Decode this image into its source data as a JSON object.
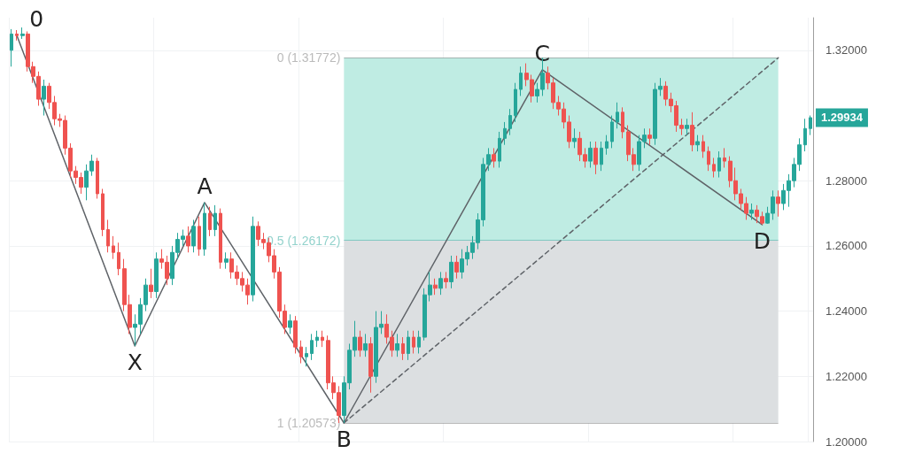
{
  "chart_data": {
    "type": "candlestick",
    "tick_labels": "y",
    "grid": true,
    "categories": [
      null,
      null,
      null,
      null,
      null,
      null,
      null,
      null,
      null,
      null,
      null,
      null,
      null,
      null,
      null,
      null,
      null,
      null,
      null,
      null,
      null,
      null,
      null,
      null,
      null,
      null,
      null,
      null,
      null,
      null,
      null,
      null,
      null,
      null,
      null,
      null,
      null,
      null,
      null,
      null,
      null,
      null,
      null,
      null,
      null,
      null,
      null,
      null,
      null,
      null,
      null,
      null,
      null,
      null,
      null,
      null,
      null,
      null,
      null,
      null,
      null,
      null,
      null,
      null,
      null,
      null,
      null,
      null,
      null,
      null,
      null,
      null,
      null,
      null,
      null,
      null,
      null,
      null,
      null,
      null,
      null,
      null,
      null,
      null,
      null,
      null,
      null,
      null,
      null,
      null,
      null,
      null,
      null,
      null,
      null,
      null,
      null,
      null,
      null,
      null,
      null,
      null,
      null,
      null,
      null,
      null,
      null,
      null,
      null,
      null,
      null,
      null,
      null,
      null,
      null,
      null,
      null,
      null,
      null,
      null,
      null,
      null,
      null,
      null,
      null,
      null,
      null,
      null,
      null,
      null,
      null,
      null,
      null,
      null,
      null,
      null,
      null,
      null,
      null,
      null,
      null,
      null,
      null,
      null,
      null,
      null,
      null,
      null,
      null,
      null
    ],
    "ylim": [
      1.2,
      1.33
    ],
    "yticks": [
      {
        "value": 1.2,
        "label": "1.20000"
      },
      {
        "value": 1.22,
        "label": "1.22000"
      },
      {
        "value": 1.24,
        "label": "1.24000"
      },
      {
        "value": 1.26,
        "label": "1.26000"
      },
      {
        "value": 1.28,
        "label": "1.28000"
      },
      {
        "value": 1.32,
        "label": "1.32000"
      }
    ],
    "series": [
      {
        "ohlc": [
          [
            1.32,
            1.3265,
            1.315,
            1.325
          ],
          [
            1.325,
            1.3262,
            1.323,
            1.3245
          ],
          [
            1.3245,
            1.327,
            1.3235,
            1.325
          ],
          [
            1.325,
            1.3258,
            1.3135,
            1.315
          ],
          [
            1.315,
            1.3165,
            1.31,
            1.312
          ],
          [
            1.312,
            1.3135,
            1.303,
            1.305
          ],
          [
            1.305,
            1.311,
            1.3,
            1.309
          ],
          [
            1.309,
            1.31,
            1.302,
            1.304
          ],
          [
            1.304,
            1.306,
            1.297,
            1.299
          ],
          [
            1.299,
            1.3005,
            1.2965,
            1.2985
          ],
          [
            1.2985,
            1.3,
            1.288,
            1.29
          ],
          [
            1.29,
            1.2915,
            1.281,
            1.283
          ],
          [
            1.283,
            1.2845,
            1.279,
            1.281
          ],
          [
            1.281,
            1.2825,
            1.276,
            1.278
          ],
          [
            1.278,
            1.285,
            1.274,
            1.283
          ],
          [
            1.283,
            1.288,
            1.2815,
            1.286
          ],
          [
            1.286,
            1.287,
            1.2745,
            1.276
          ],
          [
            1.276,
            1.2775,
            1.263,
            1.265
          ],
          [
            1.265,
            1.268,
            1.258,
            1.26
          ],
          [
            1.26,
            1.263,
            1.256,
            1.258
          ],
          [
            1.258,
            1.261,
            1.251,
            1.253
          ],
          [
            1.253,
            1.256,
            1.24,
            1.242
          ],
          [
            1.242,
            1.245,
            1.233,
            1.235
          ],
          [
            1.235,
            1.239,
            1.2293,
            1.236
          ],
          [
            1.236,
            1.244,
            1.233,
            1.242
          ],
          [
            1.242,
            1.25,
            1.24,
            1.248
          ],
          [
            1.248,
            1.253,
            1.244,
            1.246
          ],
          [
            1.246,
            1.258,
            1.244,
            1.256
          ],
          [
            1.256,
            1.259,
            1.253,
            1.255
          ],
          [
            1.255,
            1.257,
            1.248,
            1.25
          ],
          [
            1.25,
            1.26,
            1.248,
            1.258
          ],
          [
            1.258,
            1.264,
            1.256,
            1.262
          ],
          [
            1.262,
            1.265,
            1.26,
            1.263
          ],
          [
            1.263,
            1.266,
            1.258,
            1.26
          ],
          [
            1.26,
            1.268,
            1.258,
            1.266
          ],
          [
            1.266,
            1.269,
            1.257,
            1.259
          ],
          [
            1.259,
            1.2733,
            1.257,
            1.27
          ],
          [
            1.27,
            1.272,
            1.263,
            1.265
          ],
          [
            1.265,
            1.2725,
            1.263,
            1.27
          ],
          [
            1.27,
            1.2715,
            1.253,
            1.255
          ],
          [
            1.255,
            1.258,
            1.253,
            1.256
          ],
          [
            1.256,
            1.258,
            1.25,
            1.252
          ],
          [
            1.252,
            1.254,
            1.248,
            1.25
          ],
          [
            1.25,
            1.252,
            1.246,
            1.248
          ],
          [
            1.248,
            1.25,
            1.242,
            1.245
          ],
          [
            1.245,
            1.269,
            1.243,
            1.266
          ],
          [
            1.266,
            1.2675,
            1.26,
            1.262
          ],
          [
            1.262,
            1.264,
            1.259,
            1.261
          ],
          [
            1.261,
            1.2625,
            1.255,
            1.257
          ],
          [
            1.257,
            1.259,
            1.25,
            1.252
          ],
          [
            1.252,
            1.2535,
            1.238,
            1.24
          ],
          [
            1.24,
            1.242,
            1.233,
            1.235
          ],
          [
            1.235,
            1.239,
            1.233,
            1.237
          ],
          [
            1.237,
            1.2385,
            1.227,
            1.229
          ],
          [
            1.229,
            1.231,
            1.224,
            1.226
          ],
          [
            1.226,
            1.229,
            1.223,
            1.227
          ],
          [
            1.227,
            1.233,
            1.225,
            1.231
          ],
          [
            1.231,
            1.234,
            1.229,
            1.232
          ],
          [
            1.232,
            1.234,
            1.229,
            1.231
          ],
          [
            1.231,
            1.2325,
            1.216,
            1.218
          ],
          [
            1.218,
            1.22,
            1.213,
            1.215
          ],
          [
            1.215,
            1.217,
            1.2057,
            1.208
          ],
          [
            1.208,
            1.22,
            1.2057,
            1.218
          ],
          [
            1.218,
            1.23,
            1.216,
            1.228
          ],
          [
            1.228,
            1.237,
            1.226,
            1.232
          ],
          [
            1.232,
            1.234,
            1.226,
            1.228
          ],
          [
            1.228,
            1.233,
            1.226,
            1.23
          ],
          [
            1.23,
            1.232,
            1.215,
            1.22
          ],
          [
            1.22,
            1.24,
            1.218,
            1.235
          ],
          [
            1.235,
            1.24,
            1.233,
            1.236
          ],
          [
            1.236,
            1.239,
            1.23,
            1.232
          ],
          [
            1.232,
            1.234,
            1.226,
            1.228
          ],
          [
            1.228,
            1.233,
            1.226,
            1.23
          ],
          [
            1.23,
            1.232,
            1.225,
            1.227
          ],
          [
            1.227,
            1.234,
            1.225,
            1.232
          ],
          [
            1.232,
            1.234,
            1.227,
            1.229
          ],
          [
            1.229,
            1.234,
            1.227,
            1.232
          ],
          [
            1.232,
            1.247,
            1.231,
            1.245
          ],
          [
            1.245,
            1.252,
            1.243,
            1.248
          ],
          [
            1.248,
            1.25,
            1.245,
            1.247
          ],
          [
            1.247,
            1.252,
            1.245,
            1.25
          ],
          [
            1.25,
            1.252,
            1.247,
            1.249
          ],
          [
            1.249,
            1.257,
            1.247,
            1.255
          ],
          [
            1.255,
            1.257,
            1.25,
            1.252
          ],
          [
            1.252,
            1.259,
            1.25,
            1.256
          ],
          [
            1.256,
            1.26,
            1.254,
            1.258
          ],
          [
            1.258,
            1.263,
            1.256,
            1.261
          ],
          [
            1.261,
            1.27,
            1.259,
            1.268
          ],
          [
            1.268,
            1.287,
            1.266,
            1.285
          ],
          [
            1.285,
            1.29,
            1.283,
            1.288
          ],
          [
            1.288,
            1.29,
            1.284,
            1.286
          ],
          [
            1.286,
            1.295,
            1.284,
            1.293
          ],
          [
            1.293,
            1.298,
            1.291,
            1.296
          ],
          [
            1.296,
            1.302,
            1.294,
            1.3
          ],
          [
            1.3,
            1.31,
            1.298,
            1.308
          ],
          [
            1.308,
            1.315,
            1.306,
            1.313
          ],
          [
            1.313,
            1.316,
            1.309,
            1.311
          ],
          [
            1.311,
            1.3125,
            1.304,
            1.306
          ],
          [
            1.306,
            1.31,
            1.304,
            1.308
          ],
          [
            1.308,
            1.3177,
            1.306,
            1.313
          ],
          [
            1.313,
            1.315,
            1.308,
            1.31
          ],
          [
            1.31,
            1.3115,
            1.302,
            1.304
          ],
          [
            1.304,
            1.306,
            1.3,
            1.302
          ],
          [
            1.302,
            1.304,
            1.296,
            1.298
          ],
          [
            1.298,
            1.3,
            1.29,
            1.292
          ],
          [
            1.292,
            1.296,
            1.29,
            1.293
          ],
          [
            1.293,
            1.295,
            1.286,
            1.288
          ],
          [
            1.288,
            1.29,
            1.284,
            1.286
          ],
          [
            1.286,
            1.292,
            1.284,
            1.29
          ],
          [
            1.29,
            1.292,
            1.282,
            1.285
          ],
          [
            1.285,
            1.292,
            1.283,
            1.29
          ],
          [
            1.29,
            1.294,
            1.288,
            1.292
          ],
          [
            1.292,
            1.3,
            1.29,
            1.298
          ],
          [
            1.298,
            1.304,
            1.296,
            1.301
          ],
          [
            1.301,
            1.3025,
            1.293,
            1.295
          ],
          [
            1.295,
            1.297,
            1.286,
            1.288
          ],
          [
            1.288,
            1.29,
            1.283,
            1.285
          ],
          [
            1.285,
            1.294,
            1.283,
            1.292
          ],
          [
            1.292,
            1.296,
            1.29,
            1.294
          ],
          [
            1.294,
            1.296,
            1.291,
            1.293
          ],
          [
            1.293,
            1.31,
            1.291,
            1.308
          ],
          [
            1.308,
            1.3115,
            1.306,
            1.309
          ],
          [
            1.309,
            1.3105,
            1.303,
            1.305
          ],
          [
            1.305,
            1.307,
            1.301,
            1.303
          ],
          [
            1.303,
            1.3045,
            1.295,
            1.297
          ],
          [
            1.297,
            1.299,
            1.294,
            1.296
          ],
          [
            1.296,
            1.299,
            1.294,
            1.297
          ],
          [
            1.297,
            1.301,
            1.289,
            1.291
          ],
          [
            1.291,
            1.294,
            1.289,
            1.292
          ],
          [
            1.292,
            1.294,
            1.287,
            1.289
          ],
          [
            1.289,
            1.2905,
            1.283,
            1.285
          ],
          [
            1.285,
            1.287,
            1.281,
            1.283
          ],
          [
            1.283,
            1.289,
            1.281,
            1.287
          ],
          [
            1.287,
            1.29,
            1.284,
            1.286
          ],
          [
            1.286,
            1.2875,
            1.278,
            1.28
          ],
          [
            1.28,
            1.284,
            1.274,
            1.276
          ],
          [
            1.276,
            1.2775,
            1.271,
            1.273
          ],
          [
            1.273,
            1.275,
            1.268,
            1.27
          ],
          [
            1.27,
            1.273,
            1.268,
            1.271
          ],
          [
            1.271,
            1.2725,
            1.267,
            1.269
          ],
          [
            1.269,
            1.2705,
            1.2665,
            1.267
          ],
          [
            1.267,
            1.272,
            1.2668,
            1.27
          ],
          [
            1.27,
            1.277,
            1.268,
            1.275
          ],
          [
            1.275,
            1.277,
            1.269,
            1.273
          ],
          [
            1.273,
            1.279,
            1.271,
            1.277
          ],
          [
            1.277,
            1.282,
            1.272,
            1.28
          ],
          [
            1.28,
            1.287,
            1.278,
            1.285
          ],
          [
            1.285,
            1.293,
            1.283,
            1.291
          ],
          [
            1.291,
            1.299,
            1.289,
            1.296
          ],
          [
            1.296,
            1.3,
            1.294,
            1.29934
          ]
        ],
        "colors": [
          "#26a69a",
          "#ef5350",
          "#26a69a",
          "#ef5350",
          "#ef5350",
          "#ef5350",
          "#26a69a",
          "#ef5350",
          "#ef5350",
          "#ef5350",
          "#ef5350",
          "#ef5350",
          "#ef5350",
          "#ef5350",
          "#26a69a",
          "#26a69a",
          "#ef5350",
          "#ef5350",
          "#ef5350",
          "#ef5350",
          "#ef5350",
          "#ef5350",
          "#ef5350",
          "#26a69a",
          "#26a69a",
          "#26a69a",
          "#ef5350",
          "#26a69a",
          "#ef5350",
          "#ef5350",
          "#26a69a",
          "#26a69a",
          "#26a69a",
          "#ef5350",
          "#26a69a",
          "#ef5350",
          "#26a69a",
          "#ef5350",
          "#26a69a",
          "#ef5350",
          "#26a69a",
          "#ef5350",
          "#ef5350",
          "#ef5350",
          "#ef5350",
          "#26a69a",
          "#ef5350",
          "#ef5350",
          "#ef5350",
          "#ef5350",
          "#ef5350",
          "#ef5350",
          "#26a69a",
          "#ef5350",
          "#ef5350",
          "#26a69a",
          "#26a69a",
          "#26a69a",
          "#ef5350",
          "#ef5350",
          "#ef5350",
          "#ef5350",
          "#26a69a",
          "#26a69a",
          "#26a69a",
          "#ef5350",
          "#26a69a",
          "#ef5350",
          "#26a69a",
          "#26a69a",
          "#ef5350",
          "#ef5350",
          "#26a69a",
          "#ef5350",
          "#26a69a",
          "#ef5350",
          "#26a69a",
          "#26a69a",
          "#26a69a",
          "#ef5350",
          "#26a69a",
          "#ef5350",
          "#26a69a",
          "#ef5350",
          "#26a69a",
          "#26a69a",
          "#26a69a",
          "#26a69a",
          "#26a69a",
          "#26a69a",
          "#ef5350",
          "#26a69a",
          "#26a69a",
          "#26a69a",
          "#26a69a",
          "#26a69a",
          "#ef5350",
          "#ef5350",
          "#26a69a",
          "#26a69a",
          "#ef5350",
          "#ef5350",
          "#ef5350",
          "#ef5350",
          "#ef5350",
          "#26a69a",
          "#ef5350",
          "#ef5350",
          "#26a69a",
          "#ef5350",
          "#26a69a",
          "#26a69a",
          "#26a69a",
          "#26a69a",
          "#ef5350",
          "#ef5350",
          "#ef5350",
          "#26a69a",
          "#26a69a",
          "#ef5350",
          "#26a69a",
          "#26a69a",
          "#ef5350",
          "#ef5350",
          "#ef5350",
          "#ef5350",
          "#26a69a",
          "#ef5350",
          "#26a69a",
          "#ef5350",
          "#ef5350",
          "#ef5350",
          "#26a69a",
          "#ef5350",
          "#ef5350",
          "#ef5350",
          "#ef5350",
          "#ef5350",
          "#26a69a",
          "#ef5350",
          "#ef5350",
          "#26a69a",
          "#26a69a",
          "#ef5350",
          "#26a69a",
          "#26a69a",
          "#26a69a",
          "#26a69a",
          "#26a69a",
          "#26a69a"
        ],
        "value_labels": [
          null,
          null,
          null,
          null,
          null,
          null,
          null,
          null,
          null,
          null,
          null,
          null,
          null,
          null,
          null,
          null,
          null,
          null,
          null,
          null,
          null,
          null,
          null,
          null,
          null,
          null,
          null,
          null,
          null,
          null,
          null,
          null,
          null,
          null,
          null,
          null,
          null,
          null,
          null,
          null,
          null,
          null,
          null,
          null,
          null,
          null,
          null,
          null,
          null,
          null,
          null,
          null,
          null,
          null,
          null,
          null,
          null,
          null,
          null,
          null,
          null,
          null,
          null,
          null,
          null,
          null,
          null,
          null,
          null,
          null,
          null,
          null,
          null,
          null,
          null,
          null,
          null,
          null,
          null,
          null,
          null,
          null,
          null,
          null,
          null,
          null,
          null,
          null,
          null,
          null,
          null,
          null,
          null,
          null,
          null,
          null,
          null,
          null,
          null,
          null,
          null,
          null,
          null,
          null,
          null,
          null,
          null,
          null,
          null,
          null,
          null,
          null,
          null,
          null,
          null,
          null,
          null,
          null,
          null,
          null,
          null,
          null,
          null,
          null,
          null,
          null,
          null,
          null,
          null,
          null,
          null,
          null,
          null,
          null,
          null,
          null,
          null,
          null,
          null,
          null,
          null,
          null,
          null,
          null,
          null,
          null,
          null,
          null,
          null,
          "1.29934"
        ]
      },
      {
        "type": "line",
        "color": "#5f6368",
        "line_style": "solid",
        "values": [
          null,
          1.3245,
          null,
          null,
          null,
          null,
          null,
          null,
          null,
          null,
          null,
          null,
          null,
          null,
          null,
          null,
          null,
          null,
          null,
          null,
          null,
          null,
          null,
          1.2293,
          null,
          null,
          null,
          null,
          null,
          null,
          null,
          null,
          null,
          null,
          null,
          null,
          1.2733,
          null,
          null,
          null,
          null,
          null,
          null,
          null,
          null,
          null,
          null,
          null,
          null,
          null,
          null,
          null,
          null,
          null,
          null,
          null,
          null,
          null,
          null,
          null,
          null,
          null,
          1.2057,
          null,
          null,
          null,
          null,
          null,
          null,
          null,
          null,
          null,
          null,
          null,
          null,
          null,
          null,
          null,
          null,
          null,
          null,
          null,
          null,
          null,
          null,
          null,
          null,
          null,
          null,
          null,
          null,
          null,
          null,
          null,
          null,
          null,
          null,
          null,
          null,
          1.314,
          null,
          null,
          null,
          null,
          null,
          null,
          null,
          null,
          null,
          null,
          null,
          null,
          null,
          null,
          null,
          null,
          null,
          null,
          null,
          null,
          null,
          null,
          null,
          null,
          null,
          null,
          null,
          null,
          null,
          null,
          null,
          null,
          null,
          null,
          null,
          null,
          null,
          null,
          null,
          null,
          1.2665,
          null,
          null,
          null,
          null,
          null,
          null,
          null,
          null,
          null
        ]
      },
      {
        "type": "line",
        "color": "#5f6368",
        "line_style": "dashed",
        "values": [
          null,
          null,
          null,
          null,
          null,
          null,
          null,
          null,
          null,
          null,
          null,
          null,
          null,
          null,
          null,
          null,
          null,
          null,
          null,
          null,
          null,
          null,
          null,
          null,
          null,
          null,
          null,
          null,
          null,
          null,
          null,
          null,
          null,
          null,
          null,
          null,
          null,
          null,
          null,
          null,
          null,
          null,
          null,
          null,
          null,
          null,
          null,
          null,
          null,
          null,
          null,
          null,
          null,
          null,
          null,
          null,
          null,
          null,
          null,
          null,
          null,
          null,
          1.2057,
          null,
          null,
          null,
          null,
          null,
          null,
          null,
          null,
          null,
          null,
          null,
          null,
          null,
          null,
          null,
          null,
          null,
          null,
          null,
          null,
          null,
          null,
          null,
          null,
          null,
          null,
          null,
          null,
          null,
          null,
          null,
          null,
          null,
          null,
          null,
          null,
          null,
          null,
          null,
          null,
          null,
          null,
          null,
          null,
          null,
          null,
          null,
          null,
          null,
          null,
          null,
          null,
          null,
          null,
          null,
          null,
          null,
          null,
          null,
          null,
          null,
          null,
          null,
          null,
          null,
          null,
          null,
          null,
          null,
          null,
          null,
          null,
          null,
          null,
          null,
          null,
          null,
          null,
          null,
          null,
          1.3177,
          null,
          null,
          null,
          null,
          null,
          null
        ]
      }
    ],
    "bands": [
      {
        "axis": "y",
        "from": 1.26172,
        "to": 1.31772,
        "color": "#bfece3"
      },
      {
        "axis": "y",
        "from": 1.20573,
        "to": 1.26172,
        "color": "#dcdfe1"
      }
    ],
    "ref_lines": [
      {
        "axis": "y",
        "value": 1.31772,
        "label": "0 (1.31772)",
        "color": "#757575"
      },
      {
        "axis": "y",
        "value": 1.26172,
        "label": "0.5 (1.26172)",
        "color": "#26a69a"
      },
      {
        "axis": "y",
        "value": 1.20573,
        "label": "1 (1.20573)",
        "color": "#757575"
      }
    ],
    "annotations": [
      "0",
      "X",
      "A",
      "B",
      "C",
      "D"
    ]
  }
}
